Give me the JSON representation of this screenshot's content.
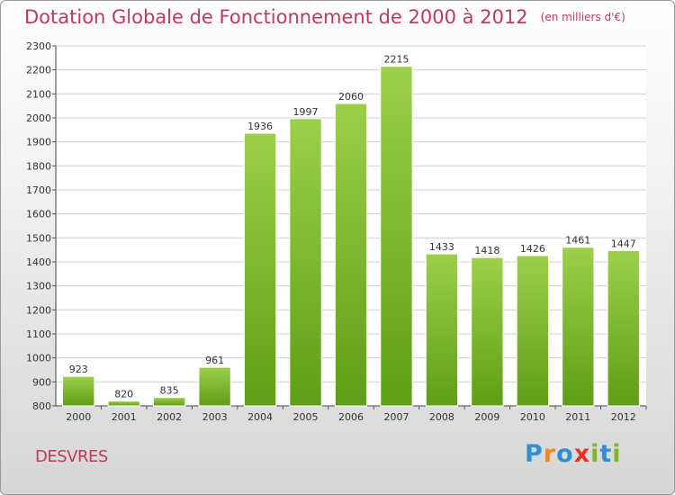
{
  "title": "Dotation Globale de Fonctionnement de 2000 à 2012",
  "units": "(en milliers d'€)",
  "commune": "DESVRES",
  "logo": {
    "letters": [
      "P",
      "r",
      "o",
      "x",
      "i",
      "t",
      "i"
    ],
    "colors": [
      "#2d8fd6",
      "#f08a1c",
      "#2d8fd6",
      "#e6332a",
      "#7ab829",
      "#2d8fd6",
      "#7ab829"
    ]
  },
  "colors": {
    "bar_light": "#9ccf4a",
    "bar_dark": "#5f9e16",
    "title": "#c0395a"
  },
  "chart_data": {
    "type": "bar",
    "title": "Dotation Globale de Fonctionnement de 2000 à 2012",
    "categories": [
      "2000",
      "2001",
      "2002",
      "2003",
      "2004",
      "2005",
      "2006",
      "2007",
      "2008",
      "2009",
      "2010",
      "2011",
      "2012"
    ],
    "values": [
      923,
      820,
      835,
      961,
      1936,
      1997,
      2060,
      2215,
      1433,
      1418,
      1426,
      1461,
      1447
    ],
    "ylim": [
      800,
      2300
    ],
    "yticks": [
      800,
      900,
      1000,
      1100,
      1200,
      1300,
      1400,
      1500,
      1600,
      1700,
      1800,
      1900,
      2000,
      2100,
      2200,
      2300
    ],
    "grid": true,
    "xlabel": "",
    "ylabel": ""
  }
}
